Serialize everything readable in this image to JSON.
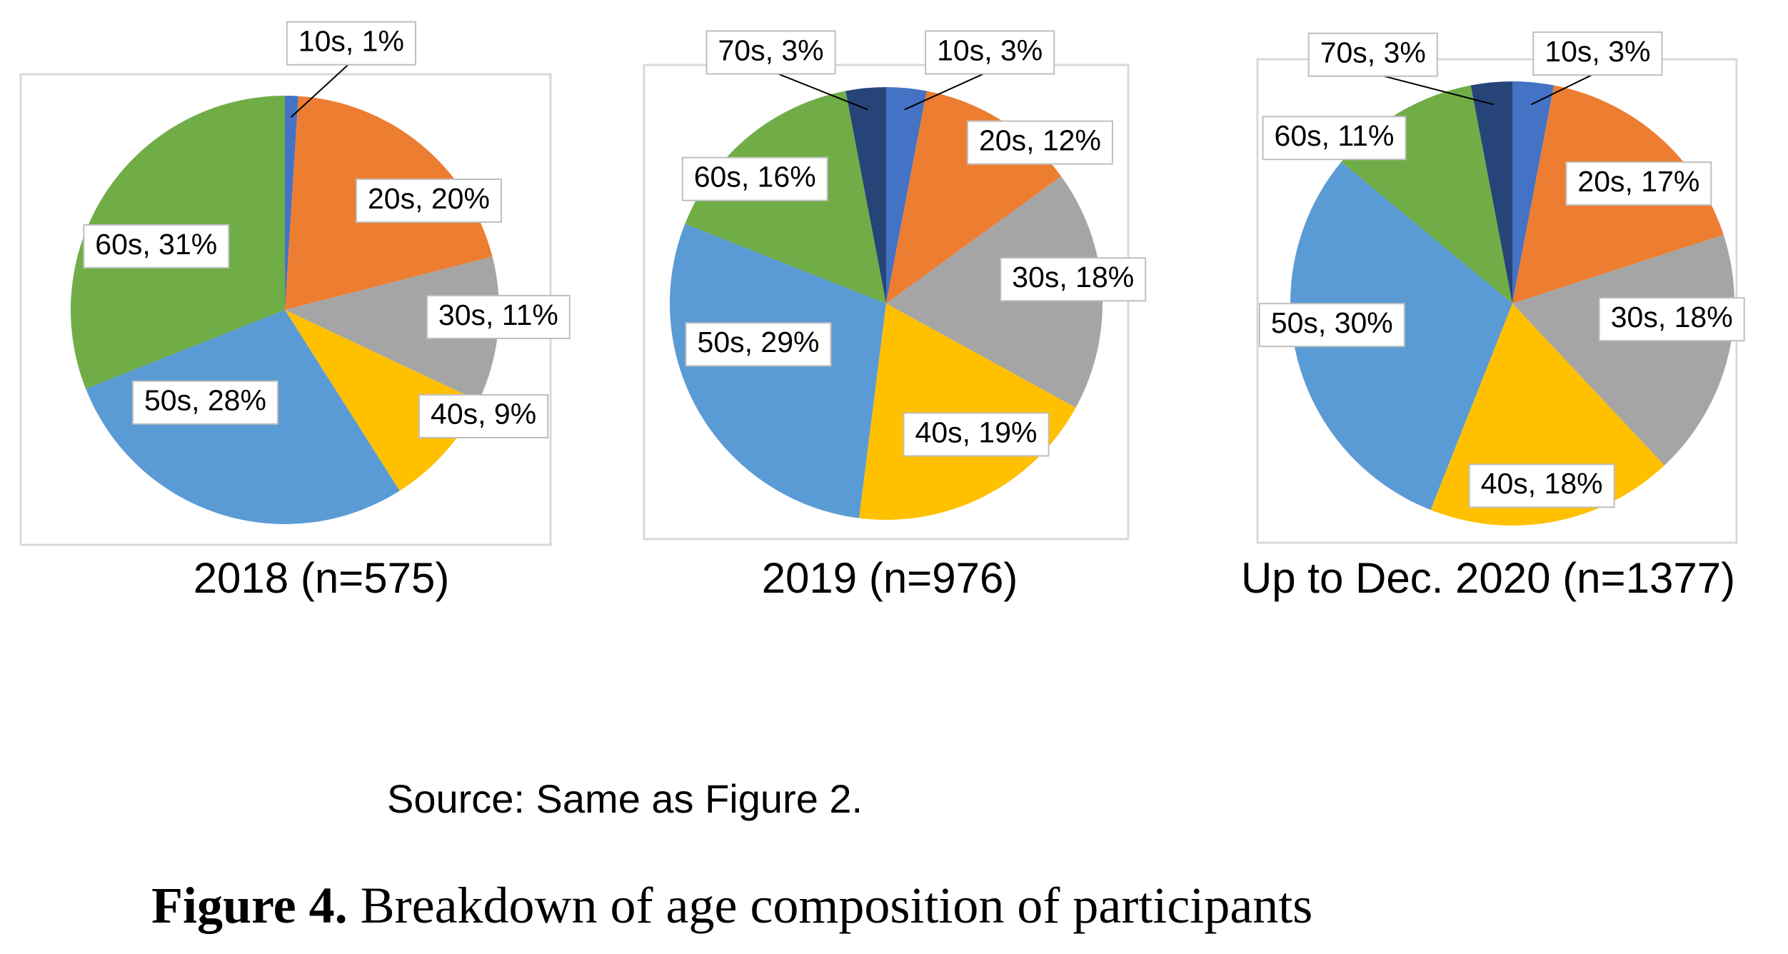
{
  "chart_data": [
    {
      "type": "pie",
      "title": "2018 (n=575)",
      "values": [
        1,
        20,
        11,
        9,
        28,
        31
      ],
      "value_labels": [
        "10s, 1%",
        "20s, 20%",
        "30s, 11%",
        "40s, 9%",
        "50s, 28%",
        "60s, 31%"
      ],
      "colors": [
        "#4472c4",
        "#ed7d31",
        "#a5a5a5",
        "#ffc000",
        "#5b9bd5",
        "#70ad47"
      ]
    },
    {
      "type": "pie",
      "title": "2019 (n=976)",
      "values": [
        3,
        12,
        18,
        19,
        29,
        16,
        3
      ],
      "value_labels": [
        "10s, 3%",
        "20s, 12%",
        "30s, 18%",
        "40s, 19%",
        "50s, 29%",
        "60s, 16%",
        "70s, 3%"
      ],
      "colors": [
        "#4472c4",
        "#ed7d31",
        "#a5a5a5",
        "#ffc000",
        "#5b9bd5",
        "#70ad47",
        "#264478"
      ]
    },
    {
      "type": "pie",
      "title": "Up to Dec. 2020 (n=1377)",
      "values": [
        3,
        17,
        18,
        18,
        30,
        11,
        3
      ],
      "value_labels": [
        "10s, 3%",
        "20s, 17%",
        "30s, 18%",
        "40s, 18%",
        "50s, 30%",
        "60s, 11%",
        "70s, 3%"
      ],
      "colors": [
        "#4472c4",
        "#ed7d31",
        "#a5a5a5",
        "#ffc000",
        "#5b9bd5",
        "#70ad47",
        "#264478"
      ]
    }
  ],
  "source": "Source: Same as Figure 2.",
  "caption": {
    "label": "Figure 4.",
    "text": "Breakdown of age composition of participants"
  }
}
